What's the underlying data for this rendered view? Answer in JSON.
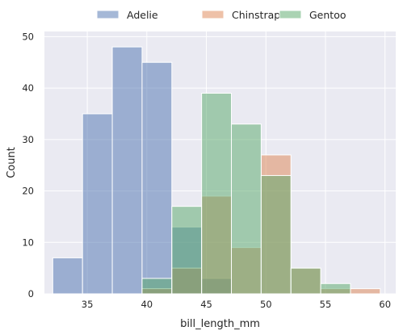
{
  "chart_data": {
    "type": "histogram",
    "xlabel": "bill_length_mm",
    "ylabel": "Count",
    "xlim": [
      31.4,
      60.9
    ],
    "ylim": [
      0,
      51
    ],
    "xticks": [
      35,
      40,
      45,
      50,
      55,
      60
    ],
    "yticks": [
      0,
      10,
      20,
      30,
      40,
      50
    ],
    "bin_edges": [
      32.1,
      34.6,
      37.1,
      39.6,
      42.1,
      44.6,
      47.1,
      49.6,
      52.1,
      54.6,
      57.1,
      59.6
    ],
    "grid": true,
    "legend_position": "top-center",
    "series": [
      {
        "name": "Adelie",
        "color": "#4c72b0",
        "counts": [
          7,
          35,
          48,
          45,
          13,
          3,
          0,
          0,
          0,
          0,
          0
        ]
      },
      {
        "name": "Chinstrap",
        "color": "#dd8452",
        "counts": [
          0,
          0,
          0,
          1,
          5,
          19,
          9,
          27,
          5,
          1,
          1
        ]
      },
      {
        "name": "Gentoo",
        "color": "#55a868",
        "counts": [
          0,
          0,
          0,
          3,
          17,
          39,
          33,
          23,
          5,
          2,
          0
        ]
      }
    ]
  }
}
